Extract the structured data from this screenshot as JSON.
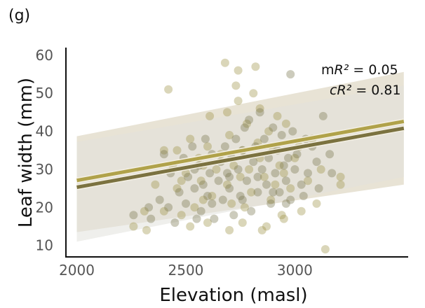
{
  "panel_label": "(g)",
  "chart_data": {
    "type": "scatter",
    "title": "",
    "xlabel": "Elevation (masl)",
    "ylabel": "Leaf width (mm)",
    "xlim": [
      1950,
      3520
    ],
    "ylim": [
      7,
      62
    ],
    "xticks": [
      2000,
      2500,
      3000
    ],
    "yticks": [
      10,
      20,
      30,
      40,
      50,
      60
    ],
    "grid": false,
    "annotations": [
      {
        "prefix": "m",
        "symbol": "R²",
        "text": " = 0.05"
      },
      {
        "prefix": "c",
        "symbol": "R²",
        "text": "  = 0.81"
      }
    ],
    "colors": {
      "group_a": "#9e9446",
      "group_b": "#7a7650",
      "band_a": "#d6ccb2",
      "band_b": "#e2e2dc",
      "line_a": "#b0a24a",
      "line_b": "#7b7240"
    },
    "series": [
      {
        "id": "group_a",
        "points": [
          [
            2260,
            15
          ],
          [
            2320,
            14
          ],
          [
            2310,
            19
          ],
          [
            2360,
            26
          ],
          [
            2400,
            35
          ],
          [
            2420,
            51
          ],
          [
            2440,
            31
          ],
          [
            2460,
            25
          ],
          [
            2460,
            35
          ],
          [
            2480,
            18
          ],
          [
            2500,
            29
          ],
          [
            2520,
            38
          ],
          [
            2540,
            20
          ],
          [
            2560,
            33
          ],
          [
            2570,
            27
          ],
          [
            2580,
            22
          ],
          [
            2600,
            36
          ],
          [
            2610,
            44
          ],
          [
            2620,
            23
          ],
          [
            2640,
            30
          ],
          [
            2660,
            34
          ],
          [
            2680,
            58
          ],
          [
            2690,
            26
          ],
          [
            2700,
            39
          ],
          [
            2710,
            21
          ],
          [
            2720,
            31
          ],
          [
            2730,
            52
          ],
          [
            2740,
            48
          ],
          [
            2740,
            56
          ],
          [
            2750,
            28
          ],
          [
            2760,
            35
          ],
          [
            2770,
            20
          ],
          [
            2780,
            42
          ],
          [
            2790,
            30
          ],
          [
            2800,
            24
          ],
          [
            2810,
            50
          ],
          [
            2820,
            57
          ],
          [
            2830,
            37
          ],
          [
            2840,
            33
          ],
          [
            2850,
            14
          ],
          [
            2860,
            28
          ],
          [
            2880,
            40
          ],
          [
            2890,
            22
          ],
          [
            2900,
            35
          ],
          [
            2910,
            26
          ],
          [
            2930,
            31
          ],
          [
            2940,
            18
          ],
          [
            2950,
            29
          ],
          [
            2960,
            42
          ],
          [
            2980,
            25
          ],
          [
            3000,
            33
          ],
          [
            3020,
            36
          ],
          [
            3030,
            19
          ],
          [
            3060,
            27
          ],
          [
            3080,
            38
          ],
          [
            3100,
            21
          ],
          [
            3120,
            30
          ],
          [
            3140,
            9
          ],
          [
            3210,
            28
          ],
          [
            3210,
            26
          ],
          [
            2400,
            19
          ],
          [
            2520,
            15
          ],
          [
            2600,
            16
          ],
          [
            2700,
            14
          ],
          [
            2760,
            16
          ],
          [
            2870,
            15
          ],
          [
            2950,
            17
          ],
          [
            2480,
            27
          ],
          [
            2580,
            31
          ],
          [
            2690,
            45
          ],
          [
            2840,
            46
          ],
          [
            2920,
            44
          ]
        ]
      },
      {
        "id": "group_b",
        "points": [
          [
            2260,
            18
          ],
          [
            2330,
            20
          ],
          [
            2380,
            22
          ],
          [
            2400,
            34
          ],
          [
            2430,
            29
          ],
          [
            2450,
            16
          ],
          [
            2470,
            24
          ],
          [
            2490,
            33
          ],
          [
            2500,
            21
          ],
          [
            2510,
            28
          ],
          [
            2530,
            36
          ],
          [
            2540,
            25
          ],
          [
            2550,
            17
          ],
          [
            2560,
            31
          ],
          [
            2570,
            19
          ],
          [
            2580,
            26
          ],
          [
            2590,
            38
          ],
          [
            2600,
            23
          ],
          [
            2610,
            29
          ],
          [
            2620,
            34
          ],
          [
            2630,
            17
          ],
          [
            2650,
            27
          ],
          [
            2660,
            32
          ],
          [
            2670,
            22
          ],
          [
            2680,
            36
          ],
          [
            2690,
            29
          ],
          [
            2700,
            25
          ],
          [
            2710,
            33
          ],
          [
            2720,
            18
          ],
          [
            2730,
            38
          ],
          [
            2740,
            30
          ],
          [
            2750,
            23
          ],
          [
            2760,
            35
          ],
          [
            2770,
            41
          ],
          [
            2780,
            27
          ],
          [
            2790,
            43
          ],
          [
            2800,
            19
          ],
          [
            2810,
            32
          ],
          [
            2820,
            36
          ],
          [
            2830,
            24
          ],
          [
            2840,
            45
          ],
          [
            2850,
            30
          ],
          [
            2860,
            38
          ],
          [
            2870,
            26
          ],
          [
            2880,
            33
          ],
          [
            2890,
            21
          ],
          [
            2900,
            41
          ],
          [
            2910,
            29
          ],
          [
            2920,
            35
          ],
          [
            2930,
            24
          ],
          [
            2940,
            39
          ],
          [
            2950,
            31
          ],
          [
            2960,
            27
          ],
          [
            2970,
            33
          ],
          [
            2980,
            22
          ],
          [
            2990,
            40
          ],
          [
            3000,
            30
          ],
          [
            3010,
            34
          ],
          [
            3030,
            26
          ],
          [
            3050,
            38
          ],
          [
            3060,
            29
          ],
          [
            3080,
            36
          ],
          [
            3100,
            32
          ],
          [
            3110,
            25
          ],
          [
            3130,
            44
          ],
          [
            3160,
            34
          ],
          [
            3170,
            29
          ],
          [
            2980,
            55
          ],
          [
            2340,
            17
          ],
          [
            2420,
            20
          ],
          [
            2540,
            30
          ],
          [
            2620,
            21
          ],
          [
            2700,
            28
          ],
          [
            2760,
            22
          ],
          [
            2830,
            28
          ],
          [
            2900,
            24
          ],
          [
            2960,
            21
          ],
          [
            3040,
            23
          ]
        ]
      }
    ],
    "fits": [
      {
        "id": "line_a",
        "x": [
          2000,
          3500
        ],
        "y": [
          27.1,
          42.6
        ],
        "band_low": [
          13.5,
          26.0
        ],
        "band_high": [
          38.7,
          55.6
        ]
      },
      {
        "id": "line_b",
        "x": [
          2000,
          3500
        ],
        "y": [
          25.3,
          40.8
        ],
        "band_low": [
          11.0,
          28.0
        ],
        "band_high": [
          37.2,
          52.0
        ]
      }
    ]
  }
}
